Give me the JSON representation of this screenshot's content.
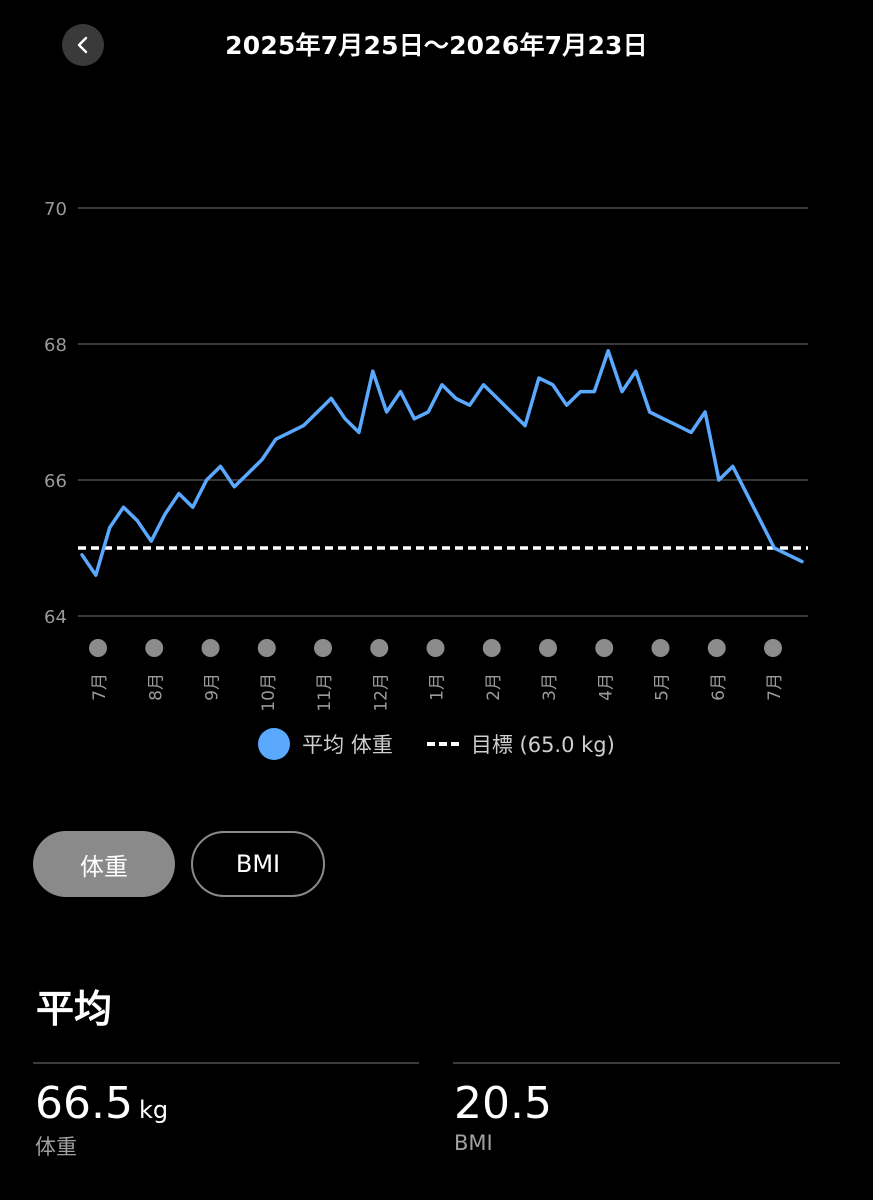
{
  "header": {
    "title": "2025年7月25日〜2026年7月23日",
    "back_icon": "chevron-left-icon"
  },
  "chart_data": {
    "type": "line",
    "title": "",
    "ylabel": "",
    "xlabel": "",
    "ylim": [
      64,
      70
    ],
    "yticks": [
      "70",
      "68",
      "66",
      "64"
    ],
    "xticks": [
      "7月",
      "8月",
      "9月",
      "10月",
      "11月",
      "12月",
      "1月",
      "2月",
      "3月",
      "4月",
      "5月",
      "6月",
      "7月"
    ],
    "grid": true,
    "series": [
      {
        "name": "平均 体重",
        "color": "#5aa9ff",
        "values": [
          64.9,
          64.6,
          65.3,
          65.6,
          65.4,
          65.1,
          65.5,
          65.8,
          65.6,
          66.0,
          66.2,
          65.9,
          66.1,
          66.3,
          66.6,
          66.7,
          66.8,
          67.0,
          67.2,
          66.9,
          66.7,
          67.6,
          67.0,
          67.3,
          66.9,
          67.0,
          67.4,
          67.2,
          67.1,
          67.4,
          67.2,
          67.0,
          66.8,
          67.5,
          67.4,
          67.1,
          67.3,
          67.3,
          67.9,
          67.3,
          67.6,
          67.0,
          66.9,
          66.8,
          66.7,
          67.0,
          66.0,
          66.2,
          65.8,
          65.4,
          65.0,
          64.9,
          64.8
        ]
      }
    ],
    "target": {
      "label": "目標 (65.0 kg)",
      "value": 65.0,
      "color": "#ffffff"
    }
  },
  "legend": {
    "average_label": "平均 体重",
    "target_label": "目標 (65.0 kg)"
  },
  "toggle": {
    "weight_label": "体重",
    "bmi_label": "BMI"
  },
  "summary": {
    "title": "平均",
    "weight_value": "66.5",
    "weight_unit": "kg",
    "weight_label": "体重",
    "bmi_value": "20.5",
    "bmi_label": "BMI"
  }
}
